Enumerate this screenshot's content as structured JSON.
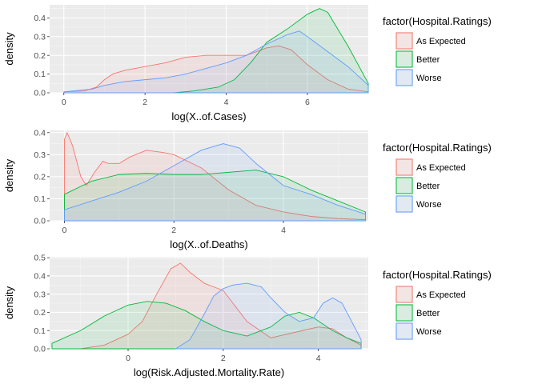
{
  "legend": {
    "title": "factor(Hospital.Ratings)",
    "entries": [
      {
        "label": "As Expected",
        "color": "#F8766D"
      },
      {
        "label": "Better",
        "color": "#00BA38"
      },
      {
        "label": "Worse",
        "color": "#619CFF"
      }
    ]
  },
  "chart_data": [
    {
      "type": "area",
      "xlabel": "log(X..of.Cases)",
      "ylabel": "density",
      "xlim": [
        -0.35,
        7.5
      ],
      "ylim": [
        0,
        0.47
      ],
      "xticks": [
        0,
        2,
        4,
        6
      ],
      "yticks": [
        0.0,
        0.1,
        0.2,
        0.3,
        0.4
      ],
      "grid": true,
      "legend_position": "right",
      "series": [
        {
          "name": "As Expected",
          "color": "#F8766D",
          "x": [
            0,
            0.5,
            0.8,
            1.0,
            1.2,
            1.5,
            2.0,
            2.5,
            3.0,
            3.5,
            4.0,
            4.5,
            5.0,
            5.3,
            5.6,
            6.0,
            6.5,
            7.0,
            7.5
          ],
          "y": [
            0.005,
            0.01,
            0.03,
            0.07,
            0.1,
            0.12,
            0.14,
            0.16,
            0.19,
            0.2,
            0.2,
            0.2,
            0.24,
            0.25,
            0.23,
            0.15,
            0.07,
            0.02,
            0.005
          ]
        },
        {
          "name": "Better",
          "color": "#00BA38",
          "x": [
            2.7,
            3.2,
            3.8,
            4.2,
            4.6,
            5.0,
            5.5,
            6.0,
            6.3,
            6.5,
            7.0,
            7.5
          ],
          "y": [
            0.0,
            0.01,
            0.03,
            0.07,
            0.16,
            0.27,
            0.34,
            0.42,
            0.45,
            0.43,
            0.25,
            0.05
          ]
        },
        {
          "name": "Worse",
          "color": "#619CFF",
          "x": [
            0,
            0.7,
            1.0,
            1.5,
            2.0,
            2.5,
            3.0,
            3.5,
            4.0,
            4.5,
            5.0,
            5.5,
            5.8,
            6.0,
            6.5,
            7.0,
            7.5
          ],
          "y": [
            0.005,
            0.02,
            0.04,
            0.06,
            0.07,
            0.08,
            0.1,
            0.13,
            0.16,
            0.2,
            0.26,
            0.31,
            0.33,
            0.3,
            0.22,
            0.14,
            0.04
          ]
        }
      ]
    },
    {
      "type": "area",
      "xlabel": "log(X..of.Deaths)",
      "ylabel": "density",
      "xlim": [
        -0.27,
        5.55
      ],
      "ylim": [
        0,
        0.41
      ],
      "xticks": [
        0,
        2,
        4
      ],
      "yticks": [
        0.0,
        0.1,
        0.2,
        0.3,
        0.4
      ],
      "grid": true,
      "legend_position": "right",
      "series": [
        {
          "name": "As Expected",
          "color": "#F8766D",
          "x": [
            0,
            0.05,
            0.15,
            0.3,
            0.4,
            0.55,
            0.7,
            0.8,
            1.0,
            1.2,
            1.5,
            1.8,
            2.0,
            2.5,
            3.0,
            3.5,
            4.0,
            4.5,
            5.0,
            5.5
          ],
          "y": [
            0.37,
            0.4,
            0.34,
            0.2,
            0.16,
            0.22,
            0.27,
            0.26,
            0.26,
            0.29,
            0.32,
            0.31,
            0.3,
            0.24,
            0.14,
            0.07,
            0.04,
            0.02,
            0.01,
            0.005
          ]
        },
        {
          "name": "Better",
          "color": "#00BA38",
          "x": [
            0,
            0.5,
            1.0,
            1.5,
            2.0,
            2.5,
            3.0,
            3.5,
            4.0,
            4.5,
            5.0,
            5.5
          ],
          "y": [
            0.12,
            0.18,
            0.21,
            0.215,
            0.21,
            0.21,
            0.22,
            0.23,
            0.2,
            0.14,
            0.09,
            0.04
          ]
        },
        {
          "name": "Worse",
          "color": "#619CFF",
          "x": [
            0,
            0.5,
            1.0,
            1.5,
            2.0,
            2.5,
            2.9,
            3.2,
            3.5,
            4.0,
            4.5,
            5.0,
            5.5
          ],
          "y": [
            0.05,
            0.09,
            0.13,
            0.18,
            0.25,
            0.32,
            0.35,
            0.33,
            0.26,
            0.16,
            0.12,
            0.07,
            0.03
          ]
        }
      ]
    },
    {
      "type": "area",
      "xlabel": "log(Risk.Adjusted.Mortality.Rate)",
      "ylabel": "density",
      "xlim": [
        -1.65,
        5.05
      ],
      "ylim": [
        0,
        0.505
      ],
      "xticks": [
        0,
        2,
        4
      ],
      "yticks": [
        0.0,
        0.1,
        0.2,
        0.3,
        0.4,
        0.5
      ],
      "grid": true,
      "legend_position": "right",
      "series": [
        {
          "name": "As Expected",
          "color": "#F8766D",
          "x": [
            -1.6,
            -1.0,
            -0.5,
            0.0,
            0.3,
            0.6,
            0.9,
            1.1,
            1.3,
            1.6,
            2.0,
            2.5,
            3.0,
            3.5,
            4.0,
            4.3,
            4.6,
            4.9
          ],
          "y": [
            0.0,
            0.0,
            0.02,
            0.08,
            0.15,
            0.3,
            0.44,
            0.47,
            0.42,
            0.36,
            0.32,
            0.15,
            0.06,
            0.09,
            0.12,
            0.11,
            0.06,
            0.02
          ]
        },
        {
          "name": "Better",
          "color": "#00BA38",
          "x": [
            -1.6,
            -1.0,
            -0.5,
            0.0,
            0.4,
            0.8,
            1.2,
            1.6,
            2.0,
            2.5,
            3.0,
            3.3,
            3.6,
            3.9,
            4.3,
            4.6,
            4.9
          ],
          "y": [
            0.03,
            0.1,
            0.18,
            0.24,
            0.26,
            0.25,
            0.21,
            0.15,
            0.1,
            0.07,
            0.12,
            0.18,
            0.2,
            0.17,
            0.1,
            0.06,
            0.03
          ]
        },
        {
          "name": "Worse",
          "color": "#619CFF",
          "x": [
            1.0,
            1.3,
            1.6,
            1.8,
            2.0,
            2.2,
            2.5,
            2.8,
            3.0,
            3.3,
            3.6,
            3.9,
            4.1,
            4.3,
            4.5,
            4.7,
            4.9
          ],
          "y": [
            0.0,
            0.05,
            0.19,
            0.29,
            0.33,
            0.35,
            0.36,
            0.34,
            0.28,
            0.2,
            0.15,
            0.17,
            0.25,
            0.28,
            0.25,
            0.15,
            0.05
          ]
        }
      ]
    }
  ]
}
